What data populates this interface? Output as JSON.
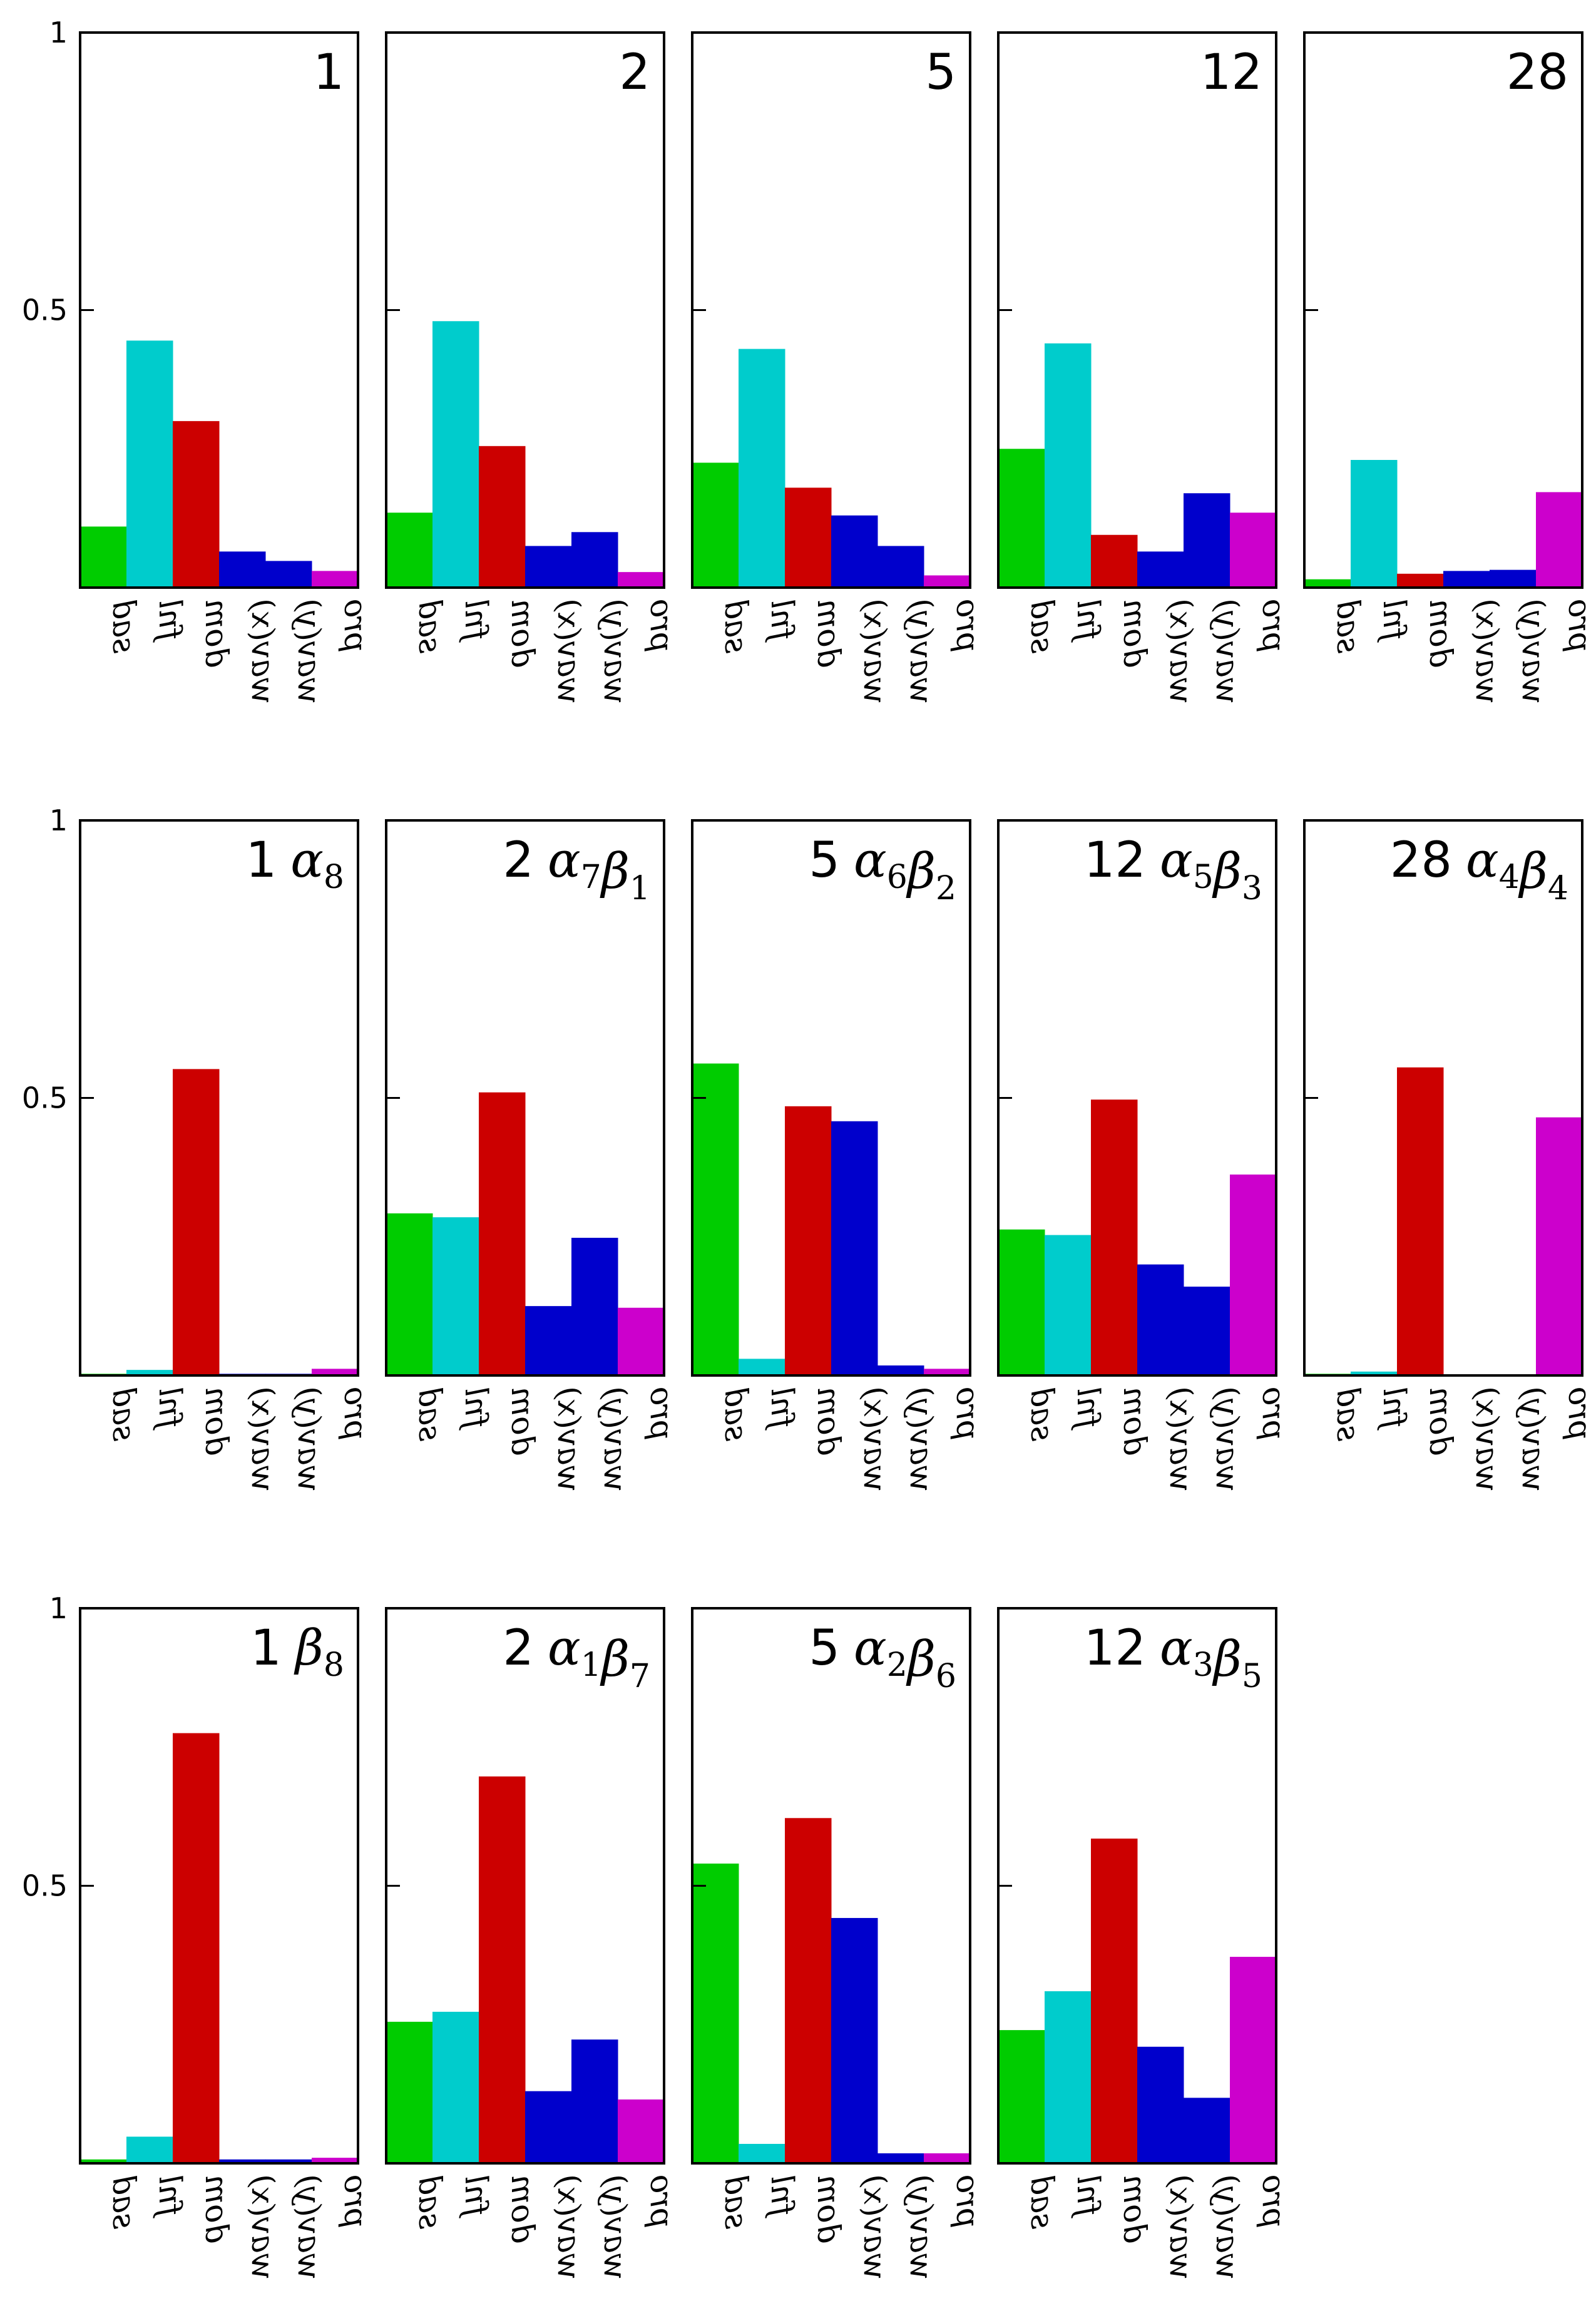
{
  "chart_data": {
    "type": "bar",
    "categories": [
      "sad",
      "fnl",
      "dom",
      "wav(x)",
      "wav(y)",
      "pro"
    ],
    "category_colors": [
      "#00cc00",
      "#00cccc",
      "#cc0000",
      "#0000cc",
      "#0000cc",
      "#cc00cc"
    ],
    "yticks": [
      {
        "value": 1,
        "label": "1"
      },
      {
        "value": 0.5,
        "label": "0.5"
      }
    ],
    "ylim": [
      0,
      1
    ],
    "panels": [
      {
        "title": "1",
        "sub": [],
        "values": [
          0.11,
          0.445,
          0.3,
          0.065,
          0.048,
          0.03
        ]
      },
      {
        "title": "2",
        "sub": [],
        "values": [
          0.135,
          0.48,
          0.255,
          0.075,
          0.1,
          0.028
        ]
      },
      {
        "title": "5",
        "sub": [],
        "values": [
          0.225,
          0.43,
          0.18,
          0.13,
          0.075,
          0.022
        ]
      },
      {
        "title": "12",
        "sub": [],
        "values": [
          0.25,
          0.44,
          0.095,
          0.065,
          0.17,
          0.135
        ]
      },
      {
        "title": "28",
        "sub": [],
        "values": [
          0.015,
          0.23,
          0.025,
          0.03,
          0.032,
          0.172
        ]
      },
      {
        "title": "1",
        "sub": [
          [
            "α",
            "8"
          ]
        ],
        "values": [
          0.003,
          0.01,
          0.552,
          0.003,
          0.003,
          0.012
        ]
      },
      {
        "title": "2",
        "sub": [
          [
            "α",
            "7"
          ],
          [
            "β",
            "1"
          ]
        ],
        "values": [
          0.292,
          0.285,
          0.51,
          0.125,
          0.248,
          0.122
        ]
      },
      {
        "title": "5",
        "sub": [
          [
            "α",
            "6"
          ],
          [
            "β",
            "2"
          ]
        ],
        "values": [
          0.562,
          0.03,
          0.485,
          0.458,
          0.018,
          0.012
        ]
      },
      {
        "title": "12",
        "sub": [
          [
            "α",
            "5"
          ],
          [
            "β",
            "3"
          ]
        ],
        "values": [
          0.263,
          0.253,
          0.497,
          0.2,
          0.16,
          0.362
        ]
      },
      {
        "title": "28",
        "sub": [
          [
            "α",
            "4"
          ],
          [
            "β",
            "4"
          ]
        ],
        "values": [
          0.003,
          0.007,
          0.555,
          0.002,
          0.002,
          0.465
        ]
      },
      {
        "title": "1",
        "sub": [
          [
            "β",
            "8"
          ]
        ],
        "values": [
          0.007,
          0.048,
          0.775,
          0.007,
          0.007,
          0.01
        ]
      },
      {
        "title": "2",
        "sub": [
          [
            "α",
            "1"
          ],
          [
            "β",
            "7"
          ]
        ],
        "values": [
          0.255,
          0.273,
          0.697,
          0.13,
          0.223,
          0.115
        ]
      },
      {
        "title": "5",
        "sub": [
          [
            "α",
            "2"
          ],
          [
            "β",
            "6"
          ]
        ],
        "values": [
          0.54,
          0.035,
          0.622,
          0.442,
          0.018,
          0.018
        ]
      },
      {
        "title": "12",
        "sub": [
          [
            "α",
            "3"
          ],
          [
            "β",
            "5"
          ]
        ],
        "values": [
          0.24,
          0.31,
          0.585,
          0.21,
          0.118,
          0.372
        ]
      }
    ]
  }
}
